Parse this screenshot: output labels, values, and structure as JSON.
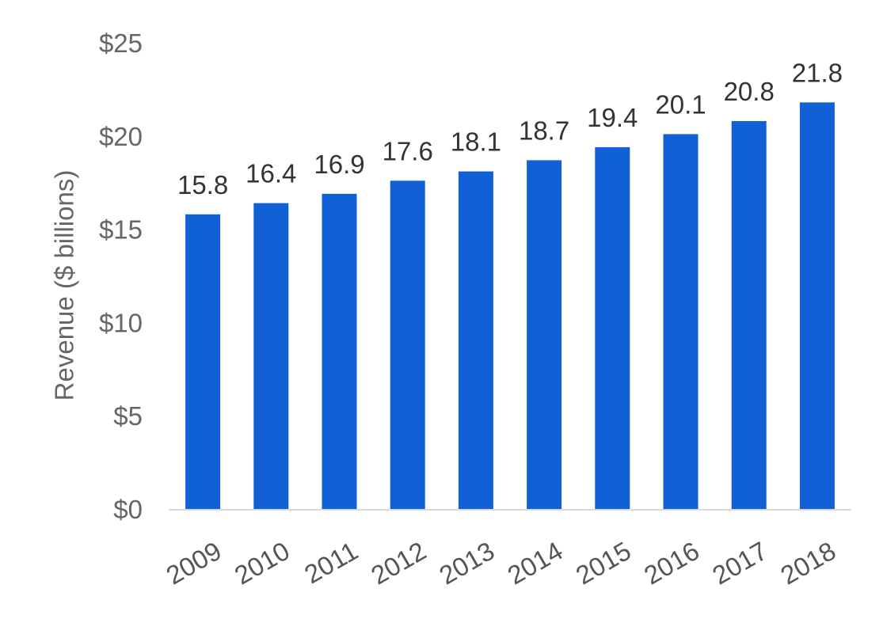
{
  "chart_data": {
    "type": "bar",
    "categories": [
      "2009",
      "2010",
      "2011",
      "2012",
      "2013",
      "2014",
      "2015",
      "2016",
      "2017",
      "2018"
    ],
    "values": [
      15.8,
      16.4,
      16.9,
      17.6,
      18.1,
      18.7,
      19.4,
      20.1,
      20.8,
      21.8
    ],
    "data_labels": [
      "15.8",
      "16.4",
      "16.9",
      "17.6",
      "18.1",
      "18.7",
      "19.4",
      "20.1",
      "20.8",
      "21.8"
    ],
    "title": "",
    "xlabel": "",
    "ylabel": "Revenue ($ billions)",
    "ylim": [
      0,
      25
    ],
    "yticks": [
      0,
      5,
      10,
      15,
      20,
      25
    ],
    "ytick_labels": [
      "$0",
      "$5",
      "$10",
      "$15",
      "$20",
      "$25"
    ],
    "grid": false,
    "legend": "none",
    "bar_color": "#1160D6",
    "axis_color": "#D9D9D9"
  }
}
